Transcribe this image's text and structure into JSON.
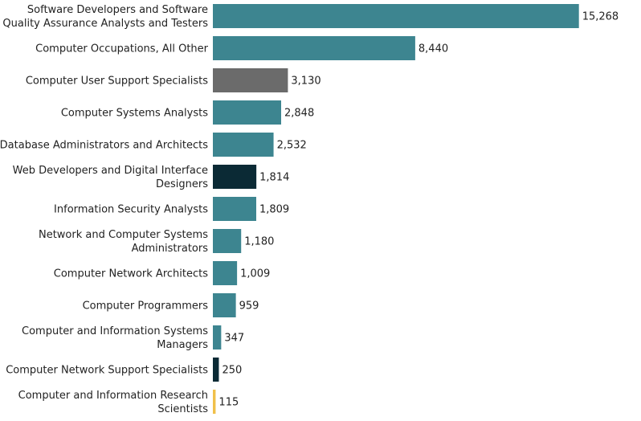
{
  "chart_data": {
    "type": "bar",
    "orientation": "horizontal",
    "title": "",
    "xlabel": "",
    "ylabel": "",
    "xlim": [
      0,
      16250
    ],
    "grid": false,
    "legend": "none",
    "categories": [
      "Software Developers and Software Quality Assurance Analysts and Testers",
      "Computer Occupations, All Other",
      "Computer User Support Specialists",
      "Computer Systems Analysts",
      "Database Administrators and Architects",
      "Web Developers and Digital Interface Designers",
      "Information Security Analysts",
      "Network and Computer Systems Administrators",
      "Computer Network Architects",
      "Computer Programmers",
      "Computer and Information Systems Managers",
      "Computer Network Support Specialists",
      "Computer and Information Research Scientists"
    ],
    "category_lines": [
      [
        "Software Developers and Software",
        "Quality Assurance Analysts and Testers"
      ],
      [
        "Computer Occupations, All Other"
      ],
      [
        "Computer User Support Specialists"
      ],
      [
        "Computer Systems Analysts"
      ],
      [
        "Database Administrators and Architects"
      ],
      [
        "Web Developers and Digital Interface",
        "Designers"
      ],
      [
        "Information Security Analysts"
      ],
      [
        "Network and Computer Systems",
        "Administrators"
      ],
      [
        "Computer Network Architects"
      ],
      [
        "Computer Programmers"
      ],
      [
        "Computer and Information Systems",
        "Managers"
      ],
      [
        "Computer Network Support Specialists"
      ],
      [
        "Computer and Information Research",
        "Scientists"
      ]
    ],
    "values": [
      15268,
      8440,
      3130,
      2848,
      2532,
      1814,
      1809,
      1180,
      1009,
      959,
      347,
      250,
      115
    ],
    "value_labels": [
      "15,268",
      "8,440",
      "3,130",
      "2,848",
      "2,532",
      "1,814",
      "1,809",
      "1,180",
      "1,009",
      "959",
      "347",
      "250",
      "115"
    ],
    "colors": [
      "#3d8590",
      "#3d8590",
      "#6b6b6b",
      "#3d8590",
      "#3d8590",
      "#0b2a35",
      "#3d8590",
      "#3d8590",
      "#3d8590",
      "#3d8590",
      "#3d8590",
      "#0b2a35",
      "#f0c04a"
    ]
  }
}
